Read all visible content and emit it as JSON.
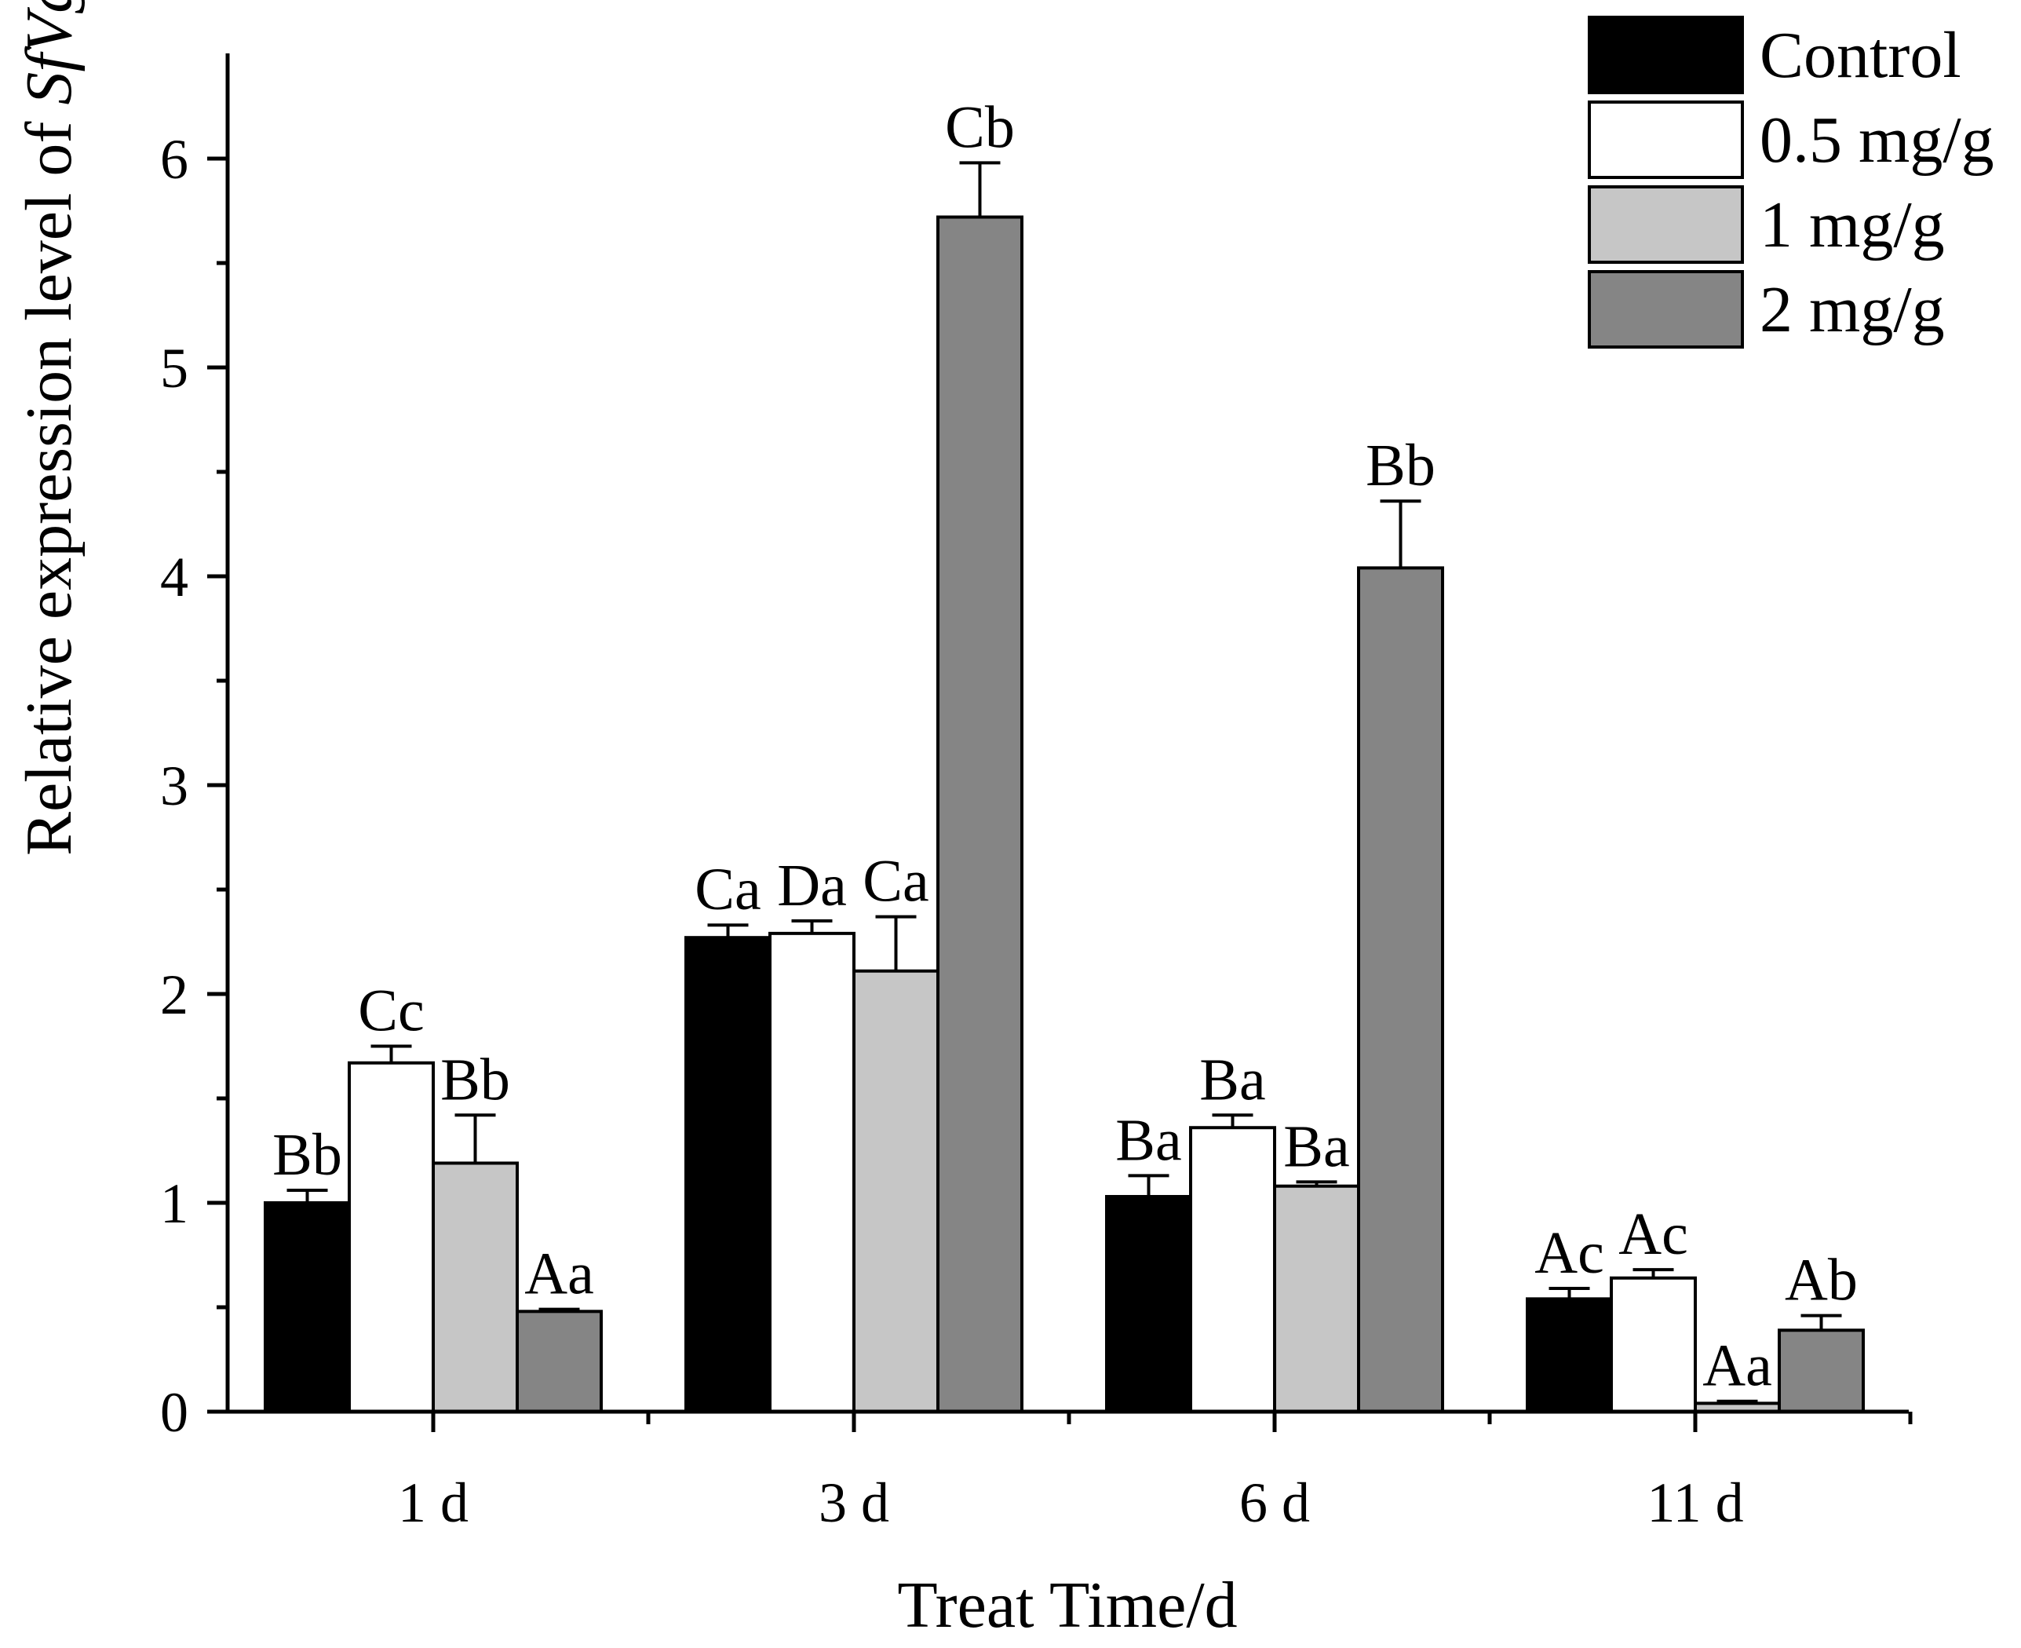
{
  "chart_data": {
    "type": "bar",
    "title": "",
    "xlabel": "Treat Time/d",
    "ylabel": {
      "prefix": "Relative expression level of ",
      "gene": "SfVg"
    },
    "ylim": [
      0,
      6.5
    ],
    "yticks": [
      "0",
      "1",
      "2",
      "3",
      "4",
      "5",
      "6"
    ],
    "categories": [
      "1 d",
      "3 d",
      "6 d",
      "11 d"
    ],
    "series": [
      {
        "name": "Control",
        "color": "#000000",
        "values": [
          1.0,
          2.27,
          1.03,
          0.54
        ],
        "errors": [
          0.06,
          0.06,
          0.1,
          0.05
        ],
        "labels": [
          "Bb",
          "Ca",
          "Ba",
          "Ac"
        ]
      },
      {
        "name": "0.5 mg/g",
        "color": "#ffffff",
        "values": [
          1.67,
          2.29,
          1.36,
          0.64
        ],
        "errors": [
          0.08,
          0.06,
          0.06,
          0.04
        ],
        "labels": [
          "Cc",
          "Da",
          "Ba",
          "Ac"
        ]
      },
      {
        "name": "1 mg/g",
        "color": "#c6c6c6",
        "values": [
          1.19,
          2.11,
          1.08,
          0.04
        ],
        "errors": [
          0.23,
          0.26,
          0.02,
          0.01
        ],
        "labels": [
          "Bb",
          "Ca",
          "Ba",
          "Aa"
        ]
      },
      {
        "name": "2 mg/g",
        "color": "#858585",
        "values": [
          0.48,
          5.72,
          4.04,
          0.39
        ],
        "errors": [
          0.01,
          0.26,
          0.32,
          0.07
        ],
        "labels": [
          "Aa",
          "Cb",
          "Bb",
          "Ab"
        ]
      }
    ],
    "legend": {
      "position": "top-right"
    },
    "grid": false
  }
}
